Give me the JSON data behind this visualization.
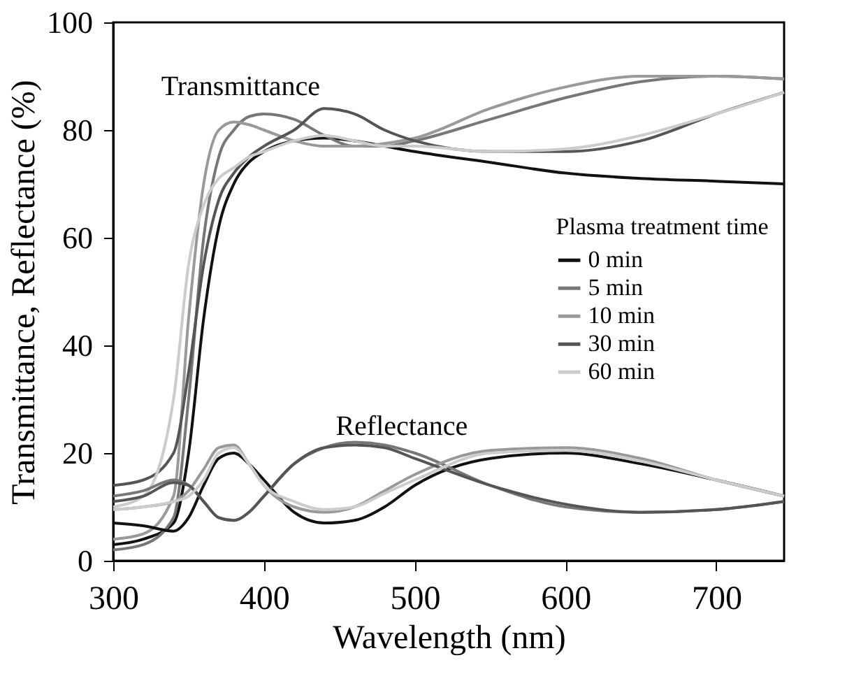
{
  "chart_data": {
    "type": "line",
    "xlabel": "Wavelength (nm)",
    "ylabel": "Transmittance, Reflectance (%)",
    "legend_title": "Plasma treatment time",
    "legend": "right",
    "grid": false,
    "line_style": "solid",
    "marker": "none",
    "x": [
      300,
      320,
      340,
      350,
      360,
      370,
      380,
      390,
      400,
      420,
      440,
      460,
      480,
      500,
      550,
      600,
      650,
      700,
      745
    ],
    "xlim": [
      300,
      745
    ],
    "xticks": [
      300,
      400,
      500,
      600,
      700
    ],
    "ylim": [
      0,
      100
    ],
    "yticks": [
      0,
      20,
      40,
      60,
      80,
      100
    ],
    "annotations": [
      "Transmittance",
      "Reflectance"
    ],
    "series": [
      {
        "name": "0 min",
        "color": "#111111",
        "values": [
          3,
          4,
          7,
          20,
          45,
          62,
          70,
          74,
          76,
          78,
          78.5,
          78,
          77,
          76,
          74,
          72,
          71,
          70.5,
          70
        ]
      },
      {
        "name": "5 min",
        "color": "#777777",
        "values": [
          2,
          3,
          8,
          30,
          60,
          75,
          80,
          82.5,
          83,
          82,
          79,
          77,
          77,
          78,
          82,
          86,
          89,
          90,
          89.5
        ]
      },
      {
        "name": "10 min",
        "color": "#999999",
        "values": [
          4,
          5,
          12,
          45,
          70,
          80,
          81.5,
          81,
          80,
          78,
          77,
          77,
          77.5,
          78.5,
          84,
          88,
          90,
          90,
          89.5
        ]
      },
      {
        "name": "30 min",
        "color": "#555555",
        "values": [
          14,
          15,
          20,
          35,
          55,
          67,
          72,
          75,
          77,
          80,
          84,
          83,
          80,
          78,
          76,
          76,
          78,
          83,
          87
        ]
      },
      {
        "name": "60 min",
        "color": "#cccccc",
        "values": [
          10,
          12,
          30,
          55,
          66,
          71,
          73,
          75,
          76,
          78,
          79,
          78,
          77,
          77,
          76,
          76.5,
          79,
          83,
          87
        ]
      },
      {
        "color": "#111111",
        "values": [
          7,
          6.5,
          5.5,
          8,
          14,
          19,
          20,
          18,
          15,
          9,
          7,
          7.5,
          10,
          14,
          19,
          20,
          18,
          15,
          12
        ]
      },
      {
        "color": "#777777",
        "values": [
          12,
          13,
          15,
          14,
          11,
          8,
          7.5,
          9,
          12,
          18,
          21,
          22,
          21.5,
          20,
          14,
          10,
          9,
          9.5,
          11
        ]
      },
      {
        "color": "#999999",
        "values": [
          9.5,
          10,
          11,
          13,
          17,
          21,
          21.5,
          18,
          14,
          10,
          9,
          10,
          13,
          16,
          20.5,
          21,
          19,
          15,
          12
        ]
      },
      {
        "color": "#555555",
        "values": [
          11,
          12,
          14.5,
          14,
          11,
          8,
          7.5,
          9,
          12,
          18,
          21,
          21.5,
          21,
          19,
          14,
          10.5,
          9,
          9.5,
          11
        ]
      },
      {
        "color": "#cccccc",
        "values": [
          9.5,
          10,
          11,
          12,
          15,
          20,
          21,
          18,
          14,
          11,
          9.5,
          10,
          12.5,
          15,
          20,
          20.5,
          18.5,
          15,
          12
        ]
      }
    ]
  }
}
